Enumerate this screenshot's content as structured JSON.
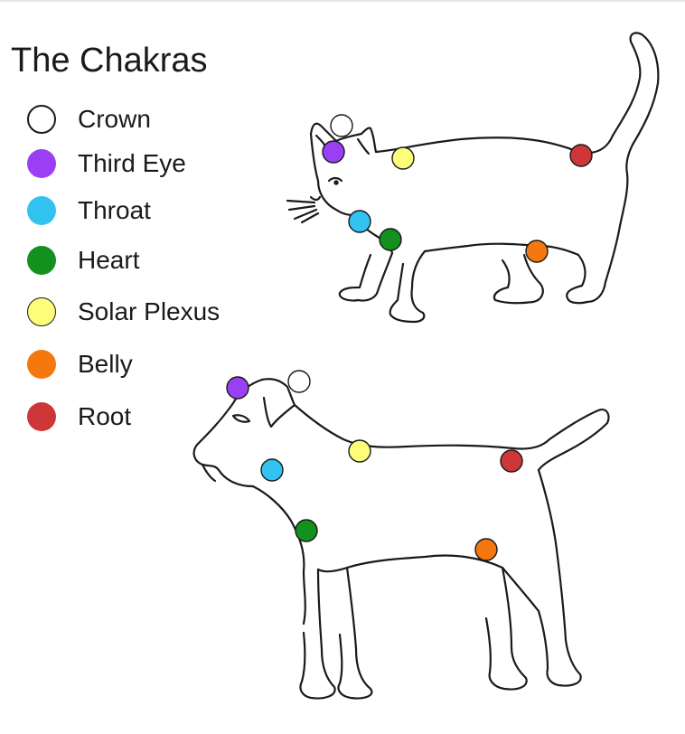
{
  "title": "The Chakras",
  "legend": [
    {
      "label": "Crown",
      "color": "#ffffff"
    },
    {
      "label": "Third Eye",
      "color": "#9b3ff5"
    },
    {
      "label": "Throat",
      "color": "#33c3f0"
    },
    {
      "label": "Heart",
      "color": "#12911f"
    },
    {
      "label": "Solar Plexus",
      "color": "#fdfd7a"
    },
    {
      "label": "Belly",
      "color": "#f5780f"
    },
    {
      "label": "Root",
      "color": "#cf3638"
    }
  ],
  "figures": [
    "cat-outline",
    "dog-outline"
  ]
}
